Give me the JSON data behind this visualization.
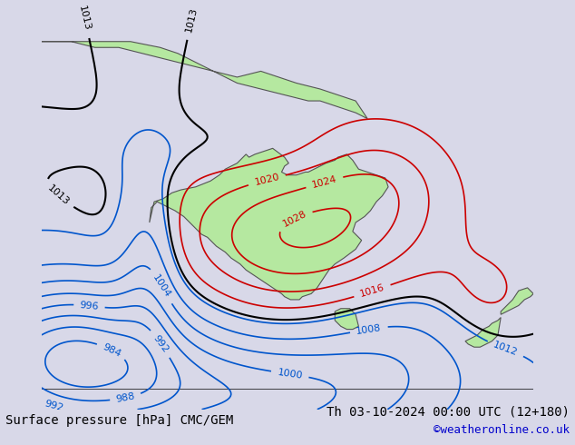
{
  "title_left": "Surface pressure [hPa] CMC/GEM",
  "title_right": "Th 03-10-2024 00:00 UTC (12+180)",
  "credit": "©weatheronline.co.uk",
  "bg_color": "#d8d8e8",
  "land_color": "#b5e8a0",
  "figsize": [
    6.34,
    4.9
  ],
  "dpi": 100,
  "bottom_bar_color": "#e8e8e8",
  "title_fontsize": 10,
  "credit_color": "#0000cc",
  "label_fontsize": 8,
  "contour_blue_values": [
    984,
    988,
    992,
    996,
    1000,
    1004,
    1008,
    1012
  ],
  "contour_black_values": [
    1013
  ],
  "contour_red_values": [
    1016,
    1020,
    1024,
    1028
  ],
  "blue_color": "#0055cc",
  "red_color": "#cc0000",
  "black_color": "#000000"
}
